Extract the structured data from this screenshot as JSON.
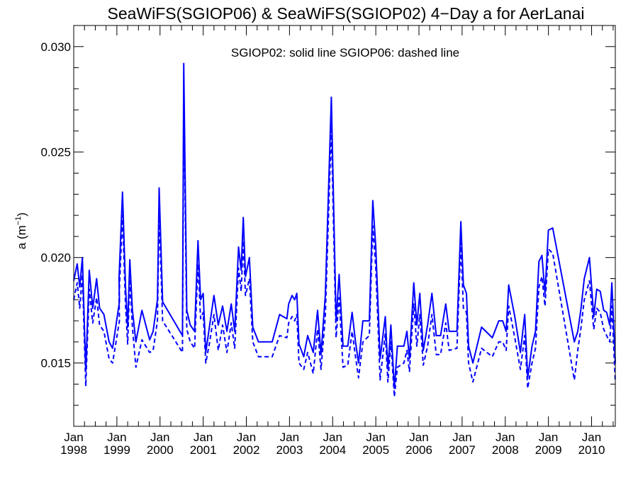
{
  "chart_data": {
    "type": "line",
    "title": "SeaWiFS(SGIOP06) & SeaWiFS(SGIOP02) 4−Day a for AerLanai",
    "annotation": "SGIOP02: solid line   SGIOP06: dashed line",
    "ylabel_main": "a (m",
    "ylabel_sup": "−1",
    "ylabel_close": ")",
    "xlim": [
      1998.0,
      2010.55
    ],
    "ylim": [
      0.012,
      0.031
    ],
    "yticks": [
      0.015,
      0.02,
      0.025,
      0.03
    ],
    "ytick_labels": [
      "0.015",
      "0.020",
      "0.025",
      "0.030"
    ],
    "xticks": [
      1998,
      1999,
      2000,
      2001,
      2002,
      2003,
      2004,
      2005,
      2006,
      2007,
      2008,
      2009,
      2010
    ],
    "xtick_month_label": "Jan",
    "xtick_year_labels": [
      "1998",
      "1999",
      "2000",
      "2001",
      "2002",
      "2003",
      "2004",
      "2005",
      "2006",
      "2007",
      "2008",
      "2009",
      "2010"
    ],
    "grid": false,
    "series": [
      {
        "name": "SGIOP02",
        "style": "solid",
        "color": "#0000ff",
        "points": [
          [
            1998.0,
            0.0189
          ],
          [
            1998.08,
            0.0197
          ],
          [
            1998.14,
            0.0186
          ],
          [
            1998.2,
            0.02
          ],
          [
            1998.28,
            0.0146
          ],
          [
            1998.36,
            0.0194
          ],
          [
            1998.44,
            0.0176
          ],
          [
            1998.53,
            0.019
          ],
          [
            1998.6,
            0.0176
          ],
          [
            1998.7,
            0.0173
          ],
          [
            1998.82,
            0.016
          ],
          [
            1998.9,
            0.0157
          ],
          [
            1999.06,
            0.0179
          ],
          [
            1999.05,
            0.019
          ],
          [
            1999.13,
            0.0231
          ],
          [
            1999.2,
            0.0186
          ],
          [
            1999.25,
            0.0167
          ],
          [
            1999.3,
            0.0199
          ],
          [
            1999.36,
            0.0175
          ],
          [
            1999.44,
            0.016
          ],
          [
            1999.58,
            0.0175
          ],
          [
            1999.76,
            0.0161
          ],
          [
            1999.84,
            0.0165
          ],
          [
            1999.94,
            0.018
          ],
          [
            1999.98,
            0.0233
          ],
          [
            2000.06,
            0.0179
          ],
          [
            2000.52,
            0.0163
          ],
          [
            2000.55,
            0.0292
          ],
          [
            2000.62,
            0.0175
          ],
          [
            2000.7,
            0.0168
          ],
          [
            2000.8,
            0.0165
          ],
          [
            2000.88,
            0.0208
          ],
          [
            2000.94,
            0.018
          ],
          [
            2001.0,
            0.0183
          ],
          [
            2001.06,
            0.0155
          ],
          [
            2001.15,
            0.0168
          ],
          [
            2001.25,
            0.0182
          ],
          [
            2001.35,
            0.0168
          ],
          [
            2001.45,
            0.0177
          ],
          [
            2001.55,
            0.0165
          ],
          [
            2001.65,
            0.0178
          ],
          [
            2001.73,
            0.0165
          ],
          [
            2001.82,
            0.0205
          ],
          [
            2001.88,
            0.0194
          ],
          [
            2001.93,
            0.0219
          ],
          [
            2001.98,
            0.0191
          ],
          [
            2002.07,
            0.02
          ],
          [
            2002.15,
            0.0167
          ],
          [
            2002.28,
            0.016
          ],
          [
            2002.6,
            0.016
          ],
          [
            2002.77,
            0.0173
          ],
          [
            2002.94,
            0.0171
          ],
          [
            2002.98,
            0.0178
          ],
          [
            2003.06,
            0.0182
          ],
          [
            2003.12,
            0.018
          ],
          [
            2003.17,
            0.0183
          ],
          [
            2003.22,
            0.0159
          ],
          [
            2003.33,
            0.0153
          ],
          [
            2003.42,
            0.0163
          ],
          [
            2003.55,
            0.0155
          ],
          [
            2003.65,
            0.0175
          ],
          [
            2003.73,
            0.0154
          ],
          [
            2003.83,
            0.0182
          ],
          [
            2003.97,
            0.0276
          ],
          [
            2004.08,
            0.017
          ],
          [
            2004.15,
            0.0192
          ],
          [
            2004.24,
            0.0158
          ],
          [
            2004.35,
            0.0158
          ],
          [
            2004.45,
            0.0174
          ],
          [
            2004.53,
            0.016
          ],
          [
            2004.6,
            0.015
          ],
          [
            2004.7,
            0.017
          ],
          [
            2004.85,
            0.017
          ],
          [
            2004.93,
            0.0227
          ],
          [
            2005.0,
            0.0205
          ],
          [
            2005.1,
            0.0152
          ],
          [
            2005.22,
            0.0172
          ],
          [
            2005.28,
            0.0147
          ],
          [
            2005.35,
            0.0168
          ],
          [
            2005.43,
            0.0138
          ],
          [
            2005.5,
            0.0158
          ],
          [
            2005.65,
            0.0158
          ],
          [
            2005.72,
            0.0165
          ],
          [
            2005.78,
            0.0152
          ],
          [
            2005.88,
            0.0188
          ],
          [
            2005.95,
            0.0168
          ],
          [
            2006.02,
            0.0183
          ],
          [
            2006.1,
            0.0156
          ],
          [
            2006.2,
            0.0168
          ],
          [
            2006.3,
            0.0183
          ],
          [
            2006.4,
            0.0163
          ],
          [
            2006.5,
            0.0163
          ],
          [
            2006.62,
            0.0178
          ],
          [
            2006.7,
            0.0165
          ],
          [
            2006.88,
            0.0165
          ],
          [
            2006.97,
            0.0217
          ],
          [
            2007.03,
            0.0187
          ],
          [
            2007.1,
            0.0183
          ],
          [
            2007.15,
            0.0158
          ],
          [
            2007.25,
            0.015
          ],
          [
            2007.45,
            0.0167
          ],
          [
            2007.7,
            0.0162
          ],
          [
            2007.85,
            0.017
          ],
          [
            2007.94,
            0.017
          ],
          [
            2008.02,
            0.0165
          ],
          [
            2008.08,
            0.0187
          ],
          [
            2008.22,
            0.0172
          ],
          [
            2008.35,
            0.0155
          ],
          [
            2008.45,
            0.0173
          ],
          [
            2008.52,
            0.0143
          ],
          [
            2008.62,
            0.0158
          ],
          [
            2008.7,
            0.0165
          ],
          [
            2008.78,
            0.0198
          ],
          [
            2008.85,
            0.0201
          ],
          [
            2008.92,
            0.0183
          ],
          [
            2009.0,
            0.0213
          ],
          [
            2009.1,
            0.0214
          ],
          [
            2009.6,
            0.016
          ],
          [
            2009.68,
            0.0165
          ],
          [
            2009.75,
            0.0175
          ],
          [
            2009.83,
            0.019
          ],
          [
            2009.95,
            0.02
          ],
          [
            2010.05,
            0.0172
          ],
          [
            2010.12,
            0.0185
          ],
          [
            2010.2,
            0.0184
          ],
          [
            2010.28,
            0.0175
          ],
          [
            2010.35,
            0.0174
          ],
          [
            2010.42,
            0.0168
          ],
          [
            2010.47,
            0.0188
          ],
          [
            2010.55,
            0.015
          ]
        ]
      },
      {
        "name": "SGIOP06",
        "style": "dashed",
        "color": "#0000ff",
        "points": [
          [
            1998.0,
            0.018
          ],
          [
            1998.08,
            0.0188
          ],
          [
            1998.14,
            0.0176
          ],
          [
            1998.2,
            0.0192
          ],
          [
            1998.28,
            0.0139
          ],
          [
            1998.36,
            0.0185
          ],
          [
            1998.44,
            0.0169
          ],
          [
            1998.53,
            0.0181
          ],
          [
            1998.6,
            0.0168
          ],
          [
            1998.7,
            0.0165
          ],
          [
            1998.82,
            0.0152
          ],
          [
            1998.9,
            0.015
          ],
          [
            1999.06,
            0.017
          ],
          [
            1999.05,
            0.0181
          ],
          [
            1999.13,
            0.022
          ],
          [
            1999.2,
            0.0177
          ],
          [
            1999.25,
            0.0159
          ],
          [
            1999.3,
            0.019
          ],
          [
            1999.36,
            0.0167
          ],
          [
            1999.44,
            0.0148
          ],
          [
            1999.58,
            0.0161
          ],
          [
            1999.76,
            0.0155
          ],
          [
            1999.84,
            0.0156
          ],
          [
            1999.94,
            0.017
          ],
          [
            1999.98,
            0.0221
          ],
          [
            2000.06,
            0.017
          ],
          [
            2000.52,
            0.0155
          ],
          [
            2000.55,
            0.0278
          ],
          [
            2000.62,
            0.0166
          ],
          [
            2000.7,
            0.016
          ],
          [
            2000.8,
            0.0157
          ],
          [
            2000.88,
            0.0197
          ],
          [
            2000.94,
            0.0171
          ],
          [
            2001.0,
            0.0174
          ],
          [
            2001.06,
            0.015
          ],
          [
            2001.15,
            0.016
          ],
          [
            2001.25,
            0.0173
          ],
          [
            2001.35,
            0.0156
          ],
          [
            2001.45,
            0.0168
          ],
          [
            2001.55,
            0.0155
          ],
          [
            2001.65,
            0.0169
          ],
          [
            2001.73,
            0.0157
          ],
          [
            2001.82,
            0.0195
          ],
          [
            2001.88,
            0.0184
          ],
          [
            2001.93,
            0.0208
          ],
          [
            2001.98,
            0.0182
          ],
          [
            2002.07,
            0.019
          ],
          [
            2002.15,
            0.016
          ],
          [
            2002.28,
            0.0153
          ],
          [
            2002.6,
            0.0153
          ],
          [
            2002.77,
            0.0163
          ],
          [
            2002.94,
            0.0162
          ],
          [
            2002.98,
            0.0169
          ],
          [
            2003.06,
            0.0172
          ],
          [
            2003.12,
            0.017
          ],
          [
            2003.17,
            0.0173
          ],
          [
            2003.22,
            0.015
          ],
          [
            2003.33,
            0.0147
          ],
          [
            2003.42,
            0.0155
          ],
          [
            2003.55,
            0.0145
          ],
          [
            2003.65,
            0.0166
          ],
          [
            2003.73,
            0.0147
          ],
          [
            2003.83,
            0.0172
          ],
          [
            2003.97,
            0.0262
          ],
          [
            2004.08,
            0.0162
          ],
          [
            2004.15,
            0.0181
          ],
          [
            2004.24,
            0.0148
          ],
          [
            2004.35,
            0.0149
          ],
          [
            2004.45,
            0.0165
          ],
          [
            2004.53,
            0.0153
          ],
          [
            2004.6,
            0.0143
          ],
          [
            2004.7,
            0.016
          ],
          [
            2004.85,
            0.0163
          ],
          [
            2004.93,
            0.0215
          ],
          [
            2005.0,
            0.0195
          ],
          [
            2005.1,
            0.0142
          ],
          [
            2005.22,
            0.0164
          ],
          [
            2005.28,
            0.0141
          ],
          [
            2005.35,
            0.016
          ],
          [
            2005.43,
            0.0134
          ],
          [
            2005.5,
            0.0148
          ],
          [
            2005.65,
            0.015
          ],
          [
            2005.72,
            0.0156
          ],
          [
            2005.78,
            0.0146
          ],
          [
            2005.88,
            0.0178
          ],
          [
            2005.95,
            0.0158
          ],
          [
            2006.02,
            0.0173
          ],
          [
            2006.1,
            0.0149
          ],
          [
            2006.2,
            0.0158
          ],
          [
            2006.3,
            0.0173
          ],
          [
            2006.4,
            0.0154
          ],
          [
            2006.5,
            0.0154
          ],
          [
            2006.62,
            0.0169
          ],
          [
            2006.7,
            0.0156
          ],
          [
            2006.88,
            0.0157
          ],
          [
            2006.97,
            0.0207
          ],
          [
            2007.03,
            0.0176
          ],
          [
            2007.1,
            0.0174
          ],
          [
            2007.15,
            0.015
          ],
          [
            2007.25,
            0.0141
          ],
          [
            2007.45,
            0.0157
          ],
          [
            2007.7,
            0.0153
          ],
          [
            2007.85,
            0.016
          ],
          [
            2007.94,
            0.016
          ],
          [
            2008.02,
            0.0156
          ],
          [
            2008.08,
            0.0177
          ],
          [
            2008.22,
            0.0162
          ],
          [
            2008.35,
            0.0147
          ],
          [
            2008.45,
            0.0163
          ],
          [
            2008.52,
            0.0138
          ],
          [
            2008.62,
            0.015
          ],
          [
            2008.7,
            0.0157
          ],
          [
            2008.78,
            0.0186
          ],
          [
            2008.85,
            0.0191
          ],
          [
            2008.92,
            0.0177
          ],
          [
            2009.0,
            0.0204
          ],
          [
            2009.1,
            0.0202
          ],
          [
            2009.6,
            0.0142
          ],
          [
            2009.68,
            0.0156
          ],
          [
            2009.75,
            0.0166
          ],
          [
            2009.83,
            0.018
          ],
          [
            2009.95,
            0.0189
          ],
          [
            2010.05,
            0.0166
          ],
          [
            2010.12,
            0.0176
          ],
          [
            2010.2,
            0.0174
          ],
          [
            2010.28,
            0.0166
          ],
          [
            2010.35,
            0.0163
          ],
          [
            2010.42,
            0.016
          ],
          [
            2010.47,
            0.0177
          ],
          [
            2010.55,
            0.0141
          ]
        ]
      }
    ]
  }
}
